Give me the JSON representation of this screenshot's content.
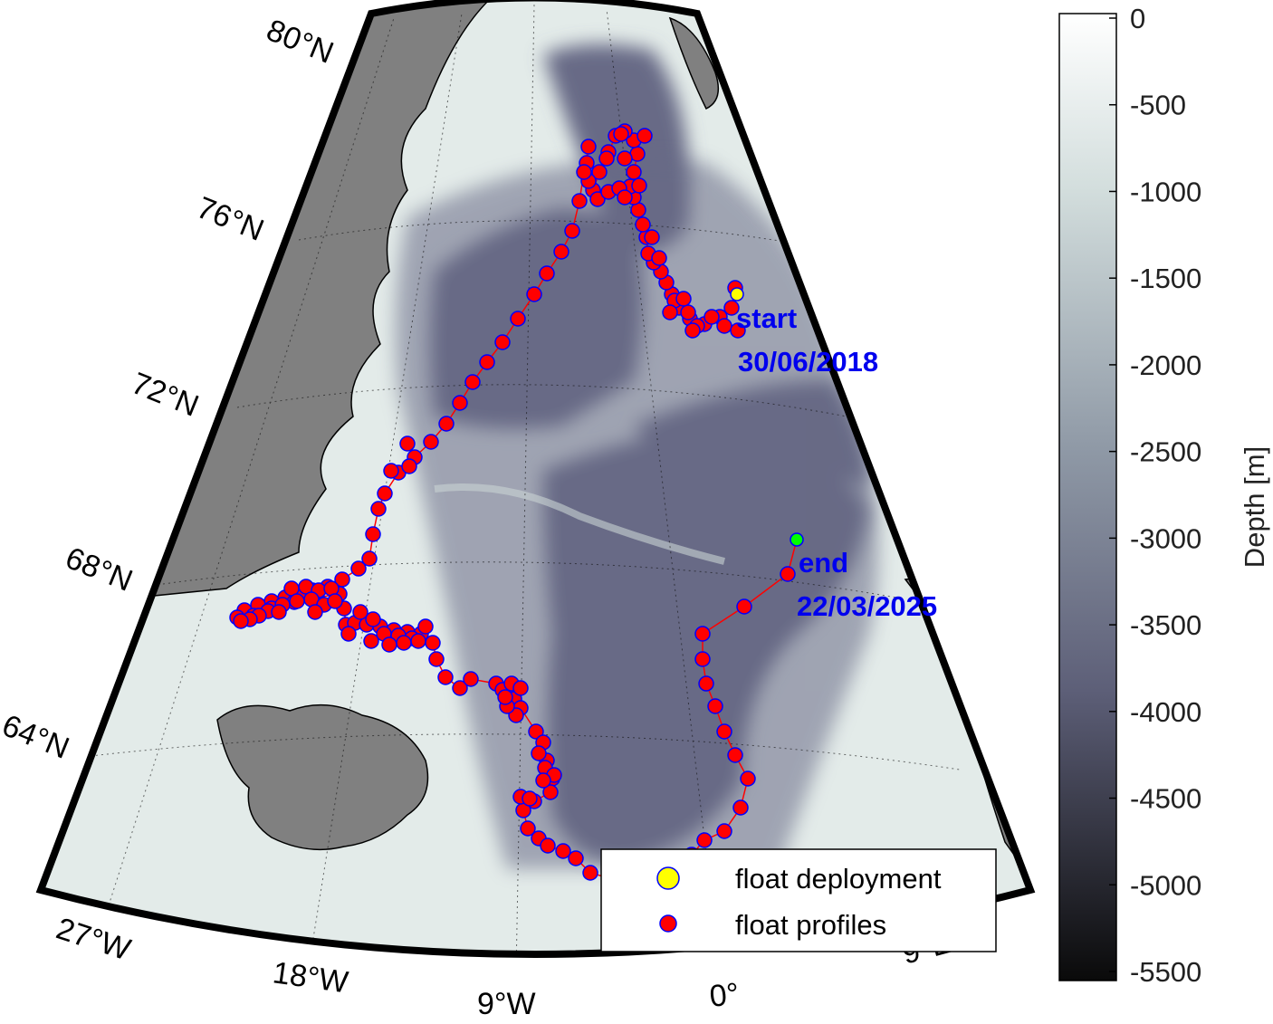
{
  "map": {
    "latitude_labels": [
      "80°N",
      "76°N",
      "72°N",
      "68°N",
      "64°N"
    ],
    "longitude_labels": [
      "27°W",
      "18°W",
      "9°W",
      "0°",
      "9°E"
    ],
    "annotations": {
      "start_label": "start",
      "start_date": "30/06/2018",
      "end_label": "end",
      "end_date": "22/03/2025"
    },
    "legend": {
      "deployment_label": "float deployment",
      "profiles_label": "float profiles"
    },
    "colors": {
      "land": "#808080",
      "shelf": "#e3ebe9",
      "deep_basin": "#676b86",
      "track": "#ff0000",
      "profile_fill": "#ff0000",
      "profile_edge": "#0000ff",
      "deployment_marker": "#ffff00",
      "end_marker": "#00ff00",
      "annotation_text": "#0000ee"
    }
  },
  "colorbar": {
    "title": "Depth [m]",
    "ticks": [
      "0",
      "-500",
      "-1000",
      "-1500",
      "-2000",
      "-2500",
      "-3000",
      "-3500",
      "-4000",
      "-4500",
      "-5000",
      "-5500"
    ]
  }
}
